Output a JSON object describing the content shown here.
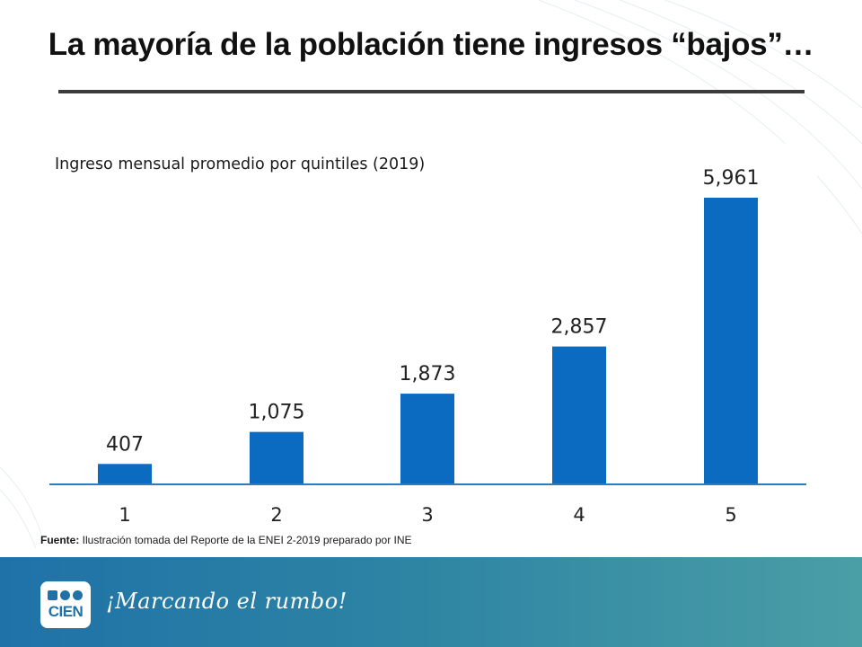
{
  "slide": {
    "title": "La mayoría de la población tiene ingresos “bajos”…",
    "source_label": "Fuente:",
    "source_text": " Ilustración tomada del Reporte de la ENEI 2-2019 preparado por INE"
  },
  "footer": {
    "logo_text": "CIEN",
    "slogan": "¡Marcando el rumbo!"
  },
  "colors": {
    "bar": "#0a6bc0",
    "axis": "#2a7dc3",
    "footer": "#2c83a3"
  },
  "chart_data": {
    "type": "bar",
    "title": "Ingreso mensual promedio por quintiles (2019)",
    "categories": [
      "1",
      "2",
      "3",
      "4",
      "5"
    ],
    "values": [
      407,
      1075,
      1873,
      2857,
      5961
    ],
    "value_labels": [
      "407",
      "1,075",
      "1,873",
      "2,857",
      "5,961"
    ],
    "xlabel": "",
    "ylabel": "",
    "ylim": [
      0,
      6000
    ],
    "grid": false,
    "legend": "none"
  }
}
